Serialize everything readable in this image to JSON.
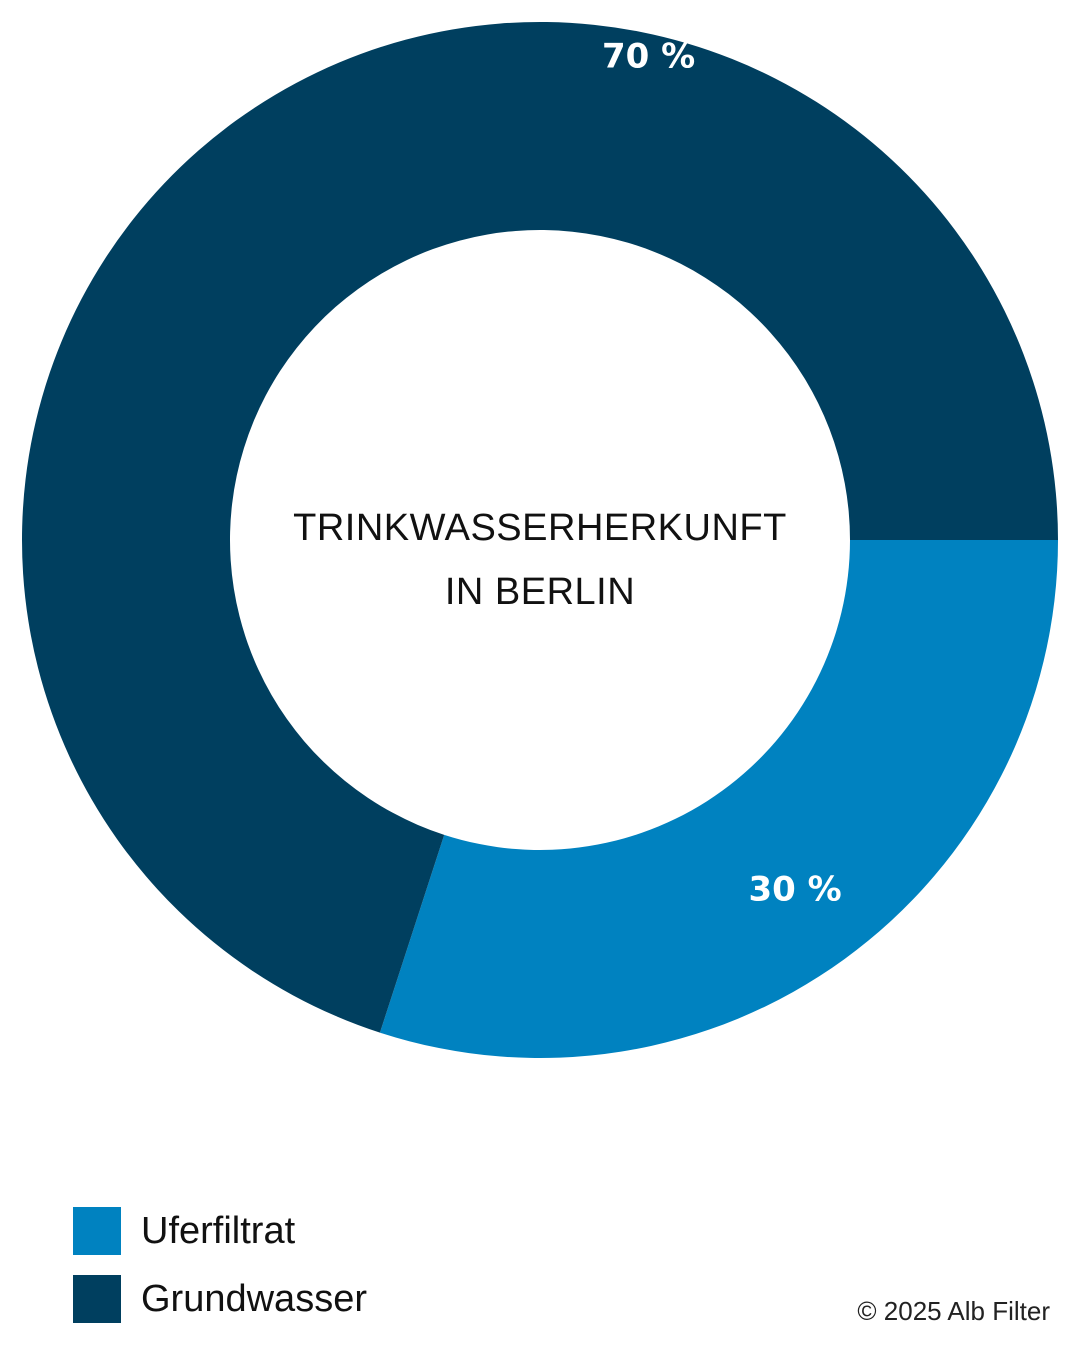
{
  "chart_data": {
    "type": "pie",
    "variant": "donut",
    "title_lines": [
      "TRINKWASSERHERKUNFT",
      "IN BERLIN"
    ],
    "slices": [
      {
        "name": "Uferfiltrat",
        "value": 30,
        "label": "30 %",
        "color": "#0082C0"
      },
      {
        "name": "Grundwasser",
        "value": 70,
        "label": "70 %",
        "color": "#003F5F"
      }
    ],
    "legend_placement": "bottom-left"
  },
  "legend": {
    "items": [
      {
        "label": "Uferfiltrat",
        "color": "#0082C0"
      },
      {
        "label": "Grundwasser",
        "color": "#003F5F"
      }
    ]
  },
  "footer": {
    "copyright": "© 2025 Alb Filter"
  }
}
